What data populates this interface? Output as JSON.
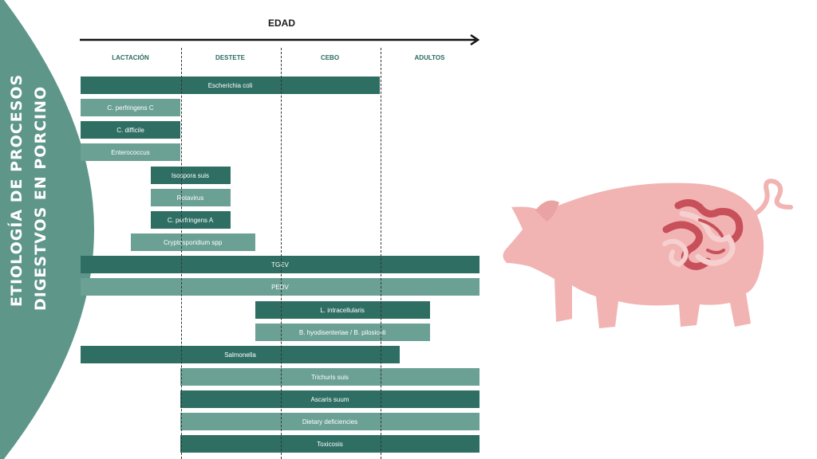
{
  "side_title": {
    "line1": "ETIOLOGÍA DE PROCESOS",
    "line2": "DIGESTVOS EN PORCINO"
  },
  "axis_title": "EDAD",
  "stages": [
    "LACTACIÓN",
    "DESTETE",
    "CEBO",
    "ADULTOS"
  ],
  "colors": {
    "dark": "#2f6f63",
    "light": "#6ba094",
    "pig": "#f2b3b3",
    "intestine": "#c7505a"
  },
  "bars": [
    {
      "label": "Escherichia coli",
      "start": 0,
      "end": 3,
      "tone": "dark"
    },
    {
      "label": "C. perfringens C",
      "start": 0,
      "end": 1,
      "tone": "light"
    },
    {
      "label": "C. difficile",
      "start": 0,
      "end": 1,
      "tone": "dark"
    },
    {
      "label": "Enterococcus",
      "start": 0,
      "end": 1,
      "tone": "light"
    },
    {
      "label": "Isospora suis",
      "start": 0.7,
      "end": 1.5,
      "tone": "dark"
    },
    {
      "label": "Rotavirus",
      "start": 0.7,
      "end": 1.5,
      "tone": "light"
    },
    {
      "label": "C. perfringens A",
      "start": 0.7,
      "end": 1.5,
      "tone": "dark"
    },
    {
      "label": "Cryptosporidium spp",
      "start": 0.5,
      "end": 1.75,
      "tone": "light"
    },
    {
      "label": "TGEV",
      "start": 0,
      "end": 4,
      "tone": "dark"
    },
    {
      "label": "PEDV",
      "start": 0,
      "end": 4,
      "tone": "light"
    },
    {
      "label": "L. intracellularis",
      "start": 1.75,
      "end": 3.5,
      "tone": "dark"
    },
    {
      "label": "B. hyodisenteriae / B. pilosicoli",
      "start": 1.75,
      "end": 3.5,
      "tone": "light"
    },
    {
      "label": "Salmonella",
      "start": 0,
      "end": 3.2,
      "tone": "dark"
    },
    {
      "label": "Trichuris suis",
      "start": 1,
      "end": 4,
      "tone": "light"
    },
    {
      "label": "Ascaris suum",
      "start": 1,
      "end": 4,
      "tone": "dark"
    },
    {
      "label": "Dietary deficiencies",
      "start": 1,
      "end": 4,
      "tone": "light"
    },
    {
      "label": "Toxicosis",
      "start": 1,
      "end": 4,
      "tone": "dark"
    }
  ]
}
